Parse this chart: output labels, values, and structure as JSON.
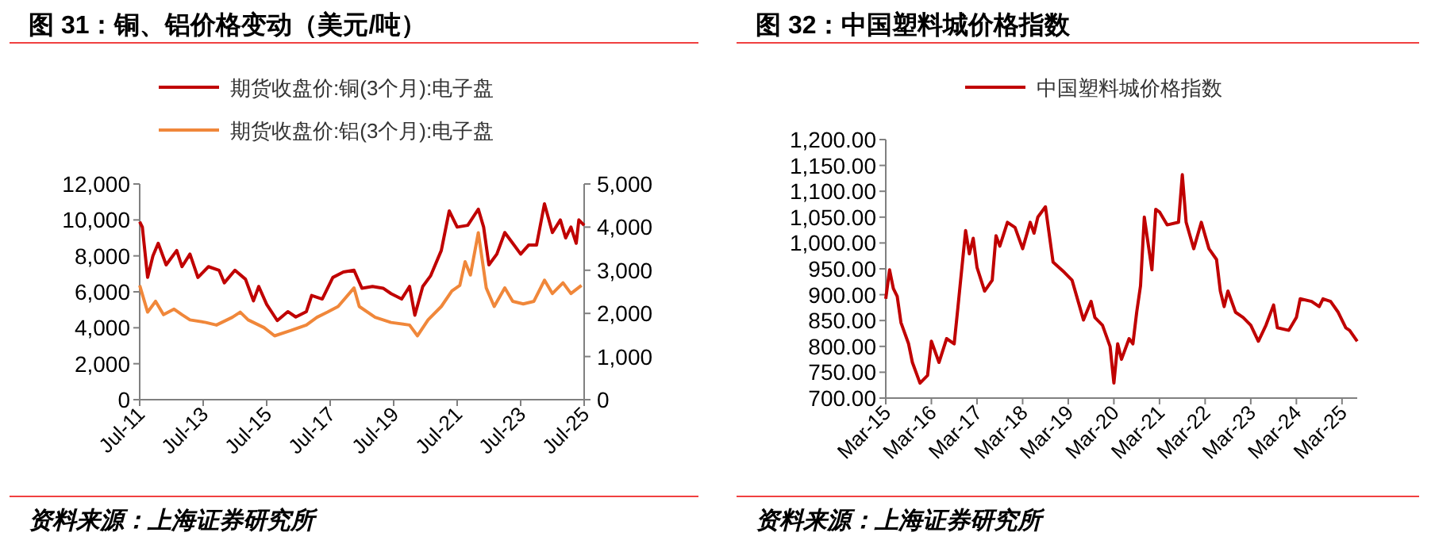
{
  "chart_data": [
    {
      "type": "line",
      "title": "图 31：铜、铝价格变动（美元/吨）",
      "legend": "top",
      "grid": false,
      "xlim": [
        "2011-07",
        "2025-07"
      ],
      "xticks": [
        {
          "value": "2011-07",
          "label": "Jul-11"
        },
        {
          "value": "2013-07",
          "label": "Jul-13"
        },
        {
          "value": "2015-07",
          "label": "Jul-15"
        },
        {
          "value": "2017-07",
          "label": "Jul-17"
        },
        {
          "value": "2019-07",
          "label": "Jul-19"
        },
        {
          "value": "2021-07",
          "label": "Jul-21"
        },
        {
          "value": "2023-07",
          "label": "Jul-23"
        },
        {
          "value": "2025-07",
          "label": "Jul-25"
        }
      ],
      "ylim": [
        0,
        12000
      ],
      "yticks": [
        0,
        {
          "value": 2000,
          "label": "2,000"
        },
        {
          "value": 4000,
          "label": "4,000"
        },
        {
          "value": 6000,
          "label": "6,000"
        },
        {
          "value": 8000,
          "label": "8,000"
        },
        {
          "value": 10000,
          "label": "10,000"
        },
        {
          "value": 12000,
          "label": "12,000"
        }
      ],
      "y2lim": [
        0,
        5000
      ],
      "y2ticks": [
        0,
        {
          "value": 1000,
          "label": "1,000"
        },
        {
          "value": 2000,
          "label": "2,000"
        },
        {
          "value": 3000,
          "label": "3,000"
        },
        {
          "value": 4000,
          "label": "4,000"
        },
        {
          "value": 5000,
          "label": "5,000"
        }
      ],
      "series": [
        {
          "name": "期货收盘价:铜(3个月):电子盘",
          "color": "#c00000",
          "x": [
            "2011-07",
            "2011-08",
            "2011-10",
            "2011-12",
            "2012-02",
            "2012-05",
            "2012-09",
            "2012-11",
            "2013-02",
            "2013-05",
            "2013-09",
            "2014-01",
            "2014-03",
            "2014-07",
            "2014-11",
            "2015-02",
            "2015-04",
            "2015-07",
            "2015-11",
            "2016-03",
            "2016-06",
            "2016-10",
            "2016-12",
            "2017-04",
            "2017-08",
            "2017-12",
            "2018-04",
            "2018-07",
            "2018-11",
            "2019-03",
            "2019-06",
            "2019-10",
            "2020-01",
            "2020-03",
            "2020-06",
            "2020-09",
            "2021-01",
            "2021-04",
            "2021-07",
            "2021-11",
            "2022-03",
            "2022-05",
            "2022-07",
            "2022-10",
            "2023-01",
            "2023-04",
            "2023-07",
            "2023-10",
            "2024-01",
            "2024-04",
            "2024-07",
            "2024-10",
            "2024-12",
            "2025-02",
            "2025-04",
            "2025-05",
            "2025-07"
          ],
          "values": [
            9900,
            9600,
            6800,
            8000,
            8700,
            7500,
            8300,
            7400,
            8100,
            6800,
            7400,
            7200,
            6500,
            7200,
            6700,
            5500,
            6300,
            5300,
            4400,
            4900,
            4600,
            4900,
            5800,
            5600,
            6800,
            7100,
            7200,
            6200,
            6300,
            6200,
            5900,
            5600,
            6300,
            4700,
            6300,
            6900,
            8300,
            10500,
            9600,
            9700,
            10600,
            9600,
            7500,
            8100,
            9300,
            8700,
            8100,
            8600,
            8600,
            10900,
            9300,
            10000,
            9000,
            9600,
            8700,
            10000,
            9700
          ]
        },
        {
          "name": "期货收盘价:铝(3个月):电子盘",
          "color": "#f0873a",
          "axis": "y2",
          "x": [
            "2011-07",
            "2011-10",
            "2012-01",
            "2012-04",
            "2012-08",
            "2012-11",
            "2013-02",
            "2013-08",
            "2013-12",
            "2014-06",
            "2014-09",
            "2014-12",
            "2015-06",
            "2015-10",
            "2016-04",
            "2016-10",
            "2017-02",
            "2017-06",
            "2017-10",
            "2018-04",
            "2018-06",
            "2018-12",
            "2019-06",
            "2020-01",
            "2020-04",
            "2020-08",
            "2021-01",
            "2021-05",
            "2021-08",
            "2021-10",
            "2021-12",
            "2022-03",
            "2022-06",
            "2022-09",
            "2023-01",
            "2023-04",
            "2023-08",
            "2023-12",
            "2024-04",
            "2024-07",
            "2024-11",
            "2025-02",
            "2025-06"
          ],
          "values": [
            2650,
            2030,
            2280,
            1970,
            2100,
            1970,
            1850,
            1790,
            1730,
            1910,
            2030,
            1850,
            1670,
            1480,
            1600,
            1730,
            1910,
            2030,
            2160,
            2590,
            2160,
            1910,
            1790,
            1730,
            1480,
            1850,
            2160,
            2520,
            2650,
            3200,
            2890,
            3870,
            2590,
            2160,
            2590,
            2280,
            2220,
            2280,
            2770,
            2460,
            2710,
            2460,
            2650
          ]
        }
      ],
      "annotations": [
        "资料来源：上海证券研究所"
      ]
    },
    {
      "type": "line",
      "title": "图 32：中国塑料城价格指数",
      "legend": "top",
      "grid": false,
      "xlim": [
        "2015-03",
        "2025-07"
      ],
      "xticks": [
        {
          "value": "2015-03",
          "label": "Mar-15"
        },
        {
          "value": "2016-03",
          "label": "Mar-16"
        },
        {
          "value": "2017-03",
          "label": "Mar-17"
        },
        {
          "value": "2018-03",
          "label": "Mar-18"
        },
        {
          "value": "2019-03",
          "label": "Mar-19"
        },
        {
          "value": "2020-03",
          "label": "Mar-20"
        },
        {
          "value": "2021-03",
          "label": "Mar-21"
        },
        {
          "value": "2022-03",
          "label": "Mar-22"
        },
        {
          "value": "2023-03",
          "label": "Mar-23"
        },
        {
          "value": "2024-03",
          "label": "Mar-24"
        },
        {
          "value": "2025-03",
          "label": "Mar-25"
        }
      ],
      "ylim": [
        700,
        1200
      ],
      "yticks": [
        {
          "value": 700,
          "label": "700.00"
        },
        {
          "value": 750,
          "label": "750.00"
        },
        {
          "value": 800,
          "label": "800.00"
        },
        {
          "value": 850,
          "label": "850.00"
        },
        {
          "value": 900,
          "label": "900.00"
        },
        {
          "value": 950,
          "label": "950.00"
        },
        {
          "value": 1000,
          "label": "1,000.00"
        },
        {
          "value": 1050,
          "label": "1,050.00"
        },
        {
          "value": 1100,
          "label": "1,100.00"
        },
        {
          "value": 1150,
          "label": "1,150.00"
        },
        {
          "value": 1200,
          "label": "1,200.00"
        }
      ],
      "series": [
        {
          "name": "中国塑料城价格指数",
          "color": "#c00000",
          "x": [
            "2015-03",
            "2015-04",
            "2015-05",
            "2015-06",
            "2015-07",
            "2015-09",
            "2015-10",
            "2015-12",
            "2016-02",
            "2016-03",
            "2016-05",
            "2016-07",
            "2016-09",
            "2016-10",
            "2016-12",
            "2017-01",
            "2017-02",
            "2017-03",
            "2017-05",
            "2017-07",
            "2017-08",
            "2017-09",
            "2017-11",
            "2018-01",
            "2018-03",
            "2018-05",
            "2018-06",
            "2018-07",
            "2018-09",
            "2018-11",
            "2019-02",
            "2019-04",
            "2019-06",
            "2019-07",
            "2019-09",
            "2019-10",
            "2019-12",
            "2020-02",
            "2020-03",
            "2020-04",
            "2020-05",
            "2020-07",
            "2020-08",
            "2020-09",
            "2020-10",
            "2020-11",
            "2021-01",
            "2021-02",
            "2021-03",
            "2021-05",
            "2021-08",
            "2021-09",
            "2021-10",
            "2021-12",
            "2022-02",
            "2022-04",
            "2022-06",
            "2022-07",
            "2022-08",
            "2022-09",
            "2022-11",
            "2023-01",
            "2023-03",
            "2023-05",
            "2023-07",
            "2023-09",
            "2023-10",
            "2024-01",
            "2024-03",
            "2024-04",
            "2024-07",
            "2024-09",
            "2024-10",
            "2024-12",
            "2025-02",
            "2025-04",
            "2025-05",
            "2025-07"
          ],
          "values": [
            892,
            948,
            912,
            897,
            846,
            805,
            769,
            729,
            744,
            810,
            769,
            815,
            805,
            877,
            1024,
            979,
            1009,
            953,
            907,
            928,
            1014,
            994,
            1040,
            1030,
            989,
            1040,
            1019,
            1050,
            1070,
            963,
            943,
            928,
            877,
            851,
            887,
            856,
            841,
            800,
            729,
            805,
            775,
            815,
            805,
            866,
            917,
            1050,
            948,
            1065,
            1060,
            1035,
            1040,
            1132,
            1040,
            989,
            1040,
            989,
            968,
            907,
            877,
            907,
            866,
            856,
            841,
            810,
            841,
            880,
            836,
            831,
            856,
            892,
            887,
            877,
            892,
            887,
            866,
            836,
            831,
            810
          ]
        }
      ],
      "annotations": [
        "资料来源：上海证券研究所"
      ]
    }
  ]
}
